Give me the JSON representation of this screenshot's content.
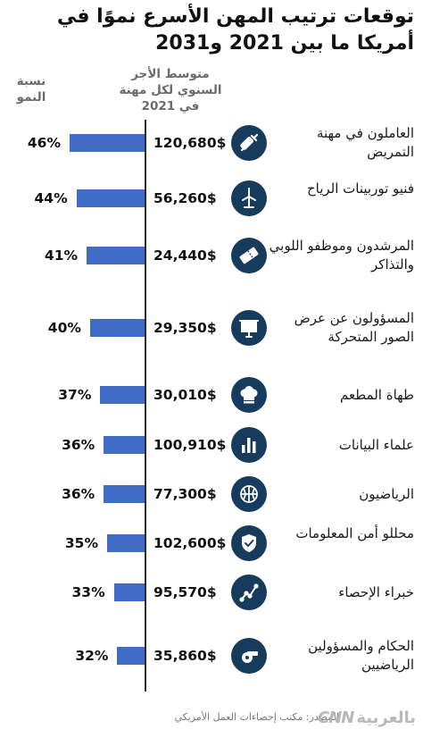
{
  "title": "توقعات ترتيب المهن الأسرع نموًا في أمريكا ما بين 2021 و2031",
  "columns": {
    "salary_header": "متوسط الأجر السنوي لكل مهنة في 2021",
    "growth_header": "نسبة النمو"
  },
  "source": "المصدر: مكتب إحصاءات العمل الأمريكي",
  "logo": {
    "latin": "CNN",
    "arabic": "بالعربية"
  },
  "colors": {
    "bar": "#3f6cc5",
    "icon_bg": "#163b5c",
    "axis": "#2c2c2c"
  },
  "chart_data": {
    "type": "bar",
    "orientation": "horizontal",
    "xlim": [
      0,
      50
    ],
    "grid": false,
    "categories": [
      "العاملون في مهنة التمريض",
      "فنيو توربينات الرياح",
      "المرشدون وموظفو اللوبي والتذاكر",
      "المسؤولون عن عرض الصور المتحركة",
      "طهاة المطعم",
      "علماء البيانات",
      "الرياضيون",
      "محللو أمن المعلومات",
      "خبراء الإحصاء",
      "الحكام والمسؤولين الرياضيين"
    ],
    "values": [
      46,
      44,
      41,
      40,
      37,
      36,
      36,
      35,
      33,
      32
    ],
    "value_labels": [
      "46%",
      "44%",
      "41%",
      "40%",
      "37%",
      "36%",
      "36%",
      "35%",
      "33%",
      "32%"
    ],
    "salary_labels": [
      "120,680$",
      "56,260$",
      "24,440$",
      "29,350$",
      "30,010$",
      "100,910$",
      "77,300$",
      "102,600$",
      "95,570$",
      "35,860$"
    ],
    "icons": [
      "syringe-icon",
      "wind-turbine-icon",
      "ticket-icon",
      "projector-screen-icon",
      "chef-hat-icon",
      "bar-chart-icon",
      "basketball-icon",
      "shield-check-icon",
      "line-chart-icon",
      "whistle-icon"
    ]
  }
}
